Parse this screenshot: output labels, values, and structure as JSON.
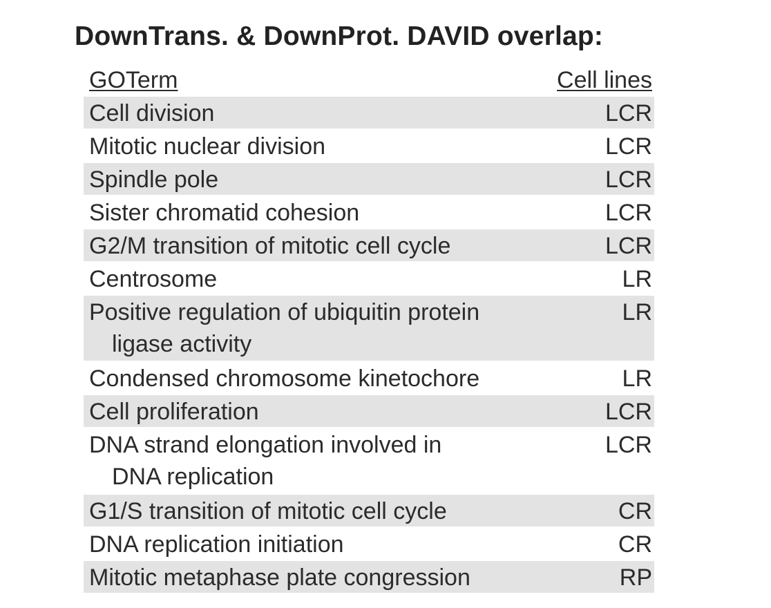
{
  "title": "DownTrans. & DownProt. DAVID overlap:",
  "headers": {
    "term": "GOTerm",
    "cells": "Cell lines"
  },
  "rows": [
    {
      "term": "Cell division",
      "cont": "",
      "cells": "LCR"
    },
    {
      "term": "Mitotic nuclear division",
      "cont": "",
      "cells": "LCR"
    },
    {
      "term": "Spindle pole",
      "cont": "",
      "cells": "LCR"
    },
    {
      "term": "Sister chromatid cohesion",
      "cont": "",
      "cells": "LCR"
    },
    {
      "term": "G2/M transition of mitotic cell cycle",
      "cont": "",
      "cells": "LCR"
    },
    {
      "term": "Centrosome",
      "cont": "",
      "cells": "LR"
    },
    {
      "term": "Positive regulation of ubiquitin protein",
      "cont": "ligase activity",
      "cells": "LR"
    },
    {
      "term": "Condensed chromosome kinetochore",
      "cont": "",
      "cells": "LR"
    },
    {
      "term": "Cell proliferation",
      "cont": "",
      "cells": "LCR"
    },
    {
      "term": "DNA strand elongation involved in",
      "cont": "DNA replication",
      "cells": "LCR"
    },
    {
      "term": "G1/S transition of mitotic cell cycle",
      "cont": "",
      "cells": "CR"
    },
    {
      "term": "DNA replication initiation",
      "cont": "",
      "cells": "CR"
    },
    {
      "term": "Mitotic metaphase plate congression",
      "cont": "",
      "cells": "RP"
    }
  ],
  "colors": {
    "shade": "#e3e3e3",
    "text": "#2b2b2b"
  }
}
